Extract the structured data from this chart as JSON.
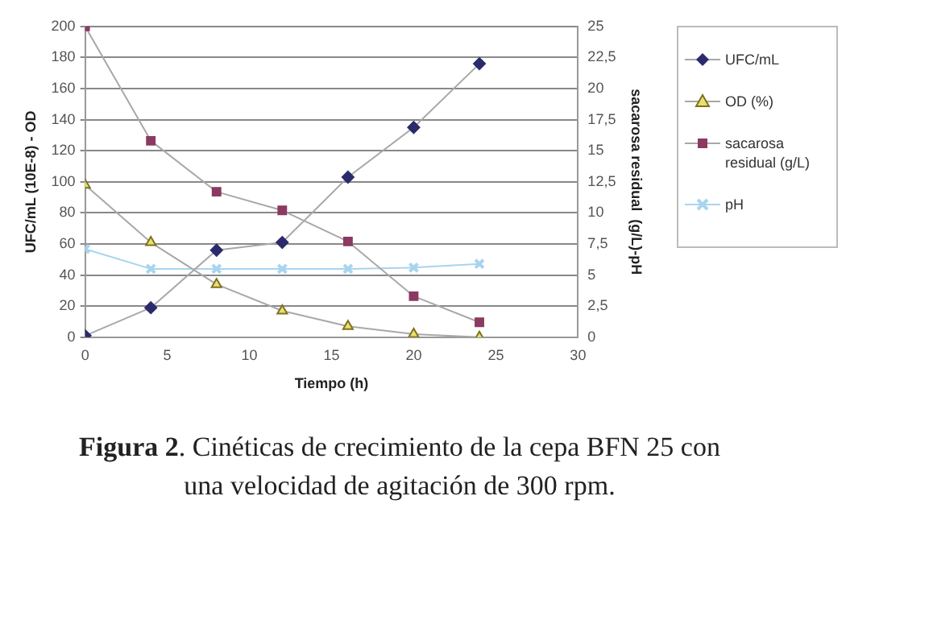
{
  "chart_data": {
    "type": "line",
    "xlabel": "Tiempo (h)",
    "ylabel": "UFC/mL (10E-8) - OD",
    "y2label": "sacarosa residual  (g/L)-pH",
    "x": [
      0,
      4,
      8,
      12,
      16,
      20,
      24
    ],
    "xlim": [
      0,
      30
    ],
    "xticks": [
      0,
      5,
      10,
      15,
      20,
      25,
      30
    ],
    "ylim": [
      0,
      200
    ],
    "yticks": [
      0,
      20,
      40,
      60,
      80,
      100,
      120,
      140,
      160,
      180,
      200
    ],
    "y2lim": [
      0,
      25
    ],
    "y2ticks": [
      0,
      {
        "value": 2.5,
        "label": "2,5"
      },
      5,
      {
        "value": 7.5,
        "label": "7,5"
      },
      10,
      {
        "value": 12.5,
        "label": "12,5"
      },
      15,
      {
        "value": 17.5,
        "label": "17,5"
      },
      20,
      {
        "value": 22.5,
        "label": "22,5"
      },
      25
    ],
    "series": [
      {
        "name": "UFC/mL",
        "color": "#2b2b6b",
        "marker": "diamond",
        "values": [
          1,
          19,
          56,
          61,
          103,
          135,
          176
        ]
      },
      {
        "name": "OD (%)",
        "color": "#e8e070",
        "marker": "triangle",
        "values": [
          98,
          61,
          34,
          17,
          7,
          2,
          0
        ]
      },
      {
        "name": "sacarosa residual (g/L)",
        "color": "#8b3a62",
        "marker": "square",
        "axis": "y2",
        "values": [
          25,
          15.8,
          11.7,
          10.2,
          7.7,
          3.3,
          1.2
        ]
      },
      {
        "name": "pH",
        "color": "#a8d4ee",
        "marker": "cross",
        "axis": "y2",
        "values": [
          7.1,
          5.5,
          5.5,
          5.5,
          5.5,
          5.6,
          5.9
        ]
      }
    ],
    "grid": "y",
    "legend": "right",
    "annotations": [
      "Figura 2. Cinéticas de crecimiento de la cepa BFN 25 con una velocidad de agitación de 300 rpm."
    ]
  }
}
